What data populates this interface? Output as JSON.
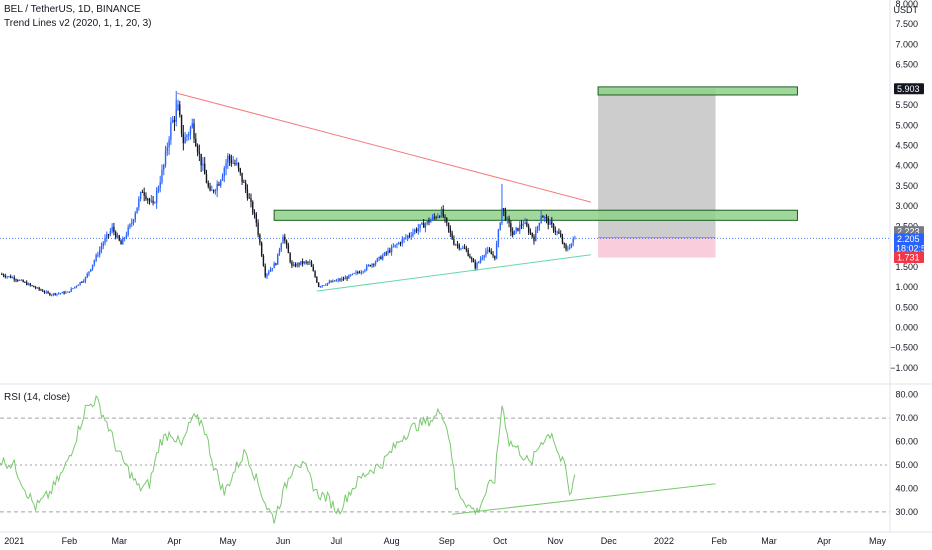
{
  "header": {
    "symbol_line": "BEL / TetherUS, 1D, BINANCE",
    "indicator_line": "Trend Lines v2 (2020, 1, 1, 20, 3)",
    "rsi_line": "RSI (14, close)"
  },
  "price_axis": {
    "currency": "USDT",
    "ticks": [
      {
        "v": 8.0,
        "label": "8.000"
      },
      {
        "v": 7.5,
        "label": "7.500"
      },
      {
        "v": 7.0,
        "label": "7.000"
      },
      {
        "v": 6.5,
        "label": "6.500"
      },
      {
        "v": 5.5,
        "label": "5.500"
      },
      {
        "v": 5.0,
        "label": "5.000"
      },
      {
        "v": 4.5,
        "label": "4.500"
      },
      {
        "v": 4.0,
        "label": "4.000"
      },
      {
        "v": 3.5,
        "label": "3.500"
      },
      {
        "v": 3.0,
        "label": "3.000"
      },
      {
        "v": 2.5,
        "label": "2.500"
      },
      {
        "v": 1.5,
        "label": "1.500"
      },
      {
        "v": 1.0,
        "label": "1.000"
      },
      {
        "v": 0.5,
        "label": "0.500"
      },
      {
        "v": 0.0,
        "label": "0.000"
      },
      {
        "v": -0.5,
        "label": "−0.500"
      },
      {
        "v": -1.0,
        "label": "−1.000"
      }
    ],
    "tags": [
      {
        "v": 5.903,
        "label": "5.903",
        "bg": "#131722",
        "fg": "#ffffff"
      },
      {
        "v": 2.223,
        "label": "2.223",
        "bg": "#787b86",
        "fg": "#ffffff"
      },
      {
        "v": 2.205,
        "label": "2.205",
        "bg": "#2962ff",
        "fg": "#ffffff",
        "sub": "18:02:52"
      },
      {
        "v": 1.731,
        "label": "1.731",
        "bg": "#f23645",
        "fg": "#ffffff"
      }
    ]
  },
  "rsi_axis": {
    "ticks": [
      {
        "v": 80,
        "label": "80.00"
      },
      {
        "v": 70,
        "label": "70.00"
      },
      {
        "v": 60,
        "label": "60.00"
      },
      {
        "v": 50,
        "label": "50.00"
      },
      {
        "v": 40,
        "label": "40.00"
      },
      {
        "v": 30,
        "label": "30.00"
      }
    ]
  },
  "time_axis": {
    "labels": [
      {
        "t": 0,
        "label": "2021"
      },
      {
        "t": 31,
        "label": "Feb"
      },
      {
        "t": 59,
        "label": "Mar"
      },
      {
        "t": 90,
        "label": "Apr"
      },
      {
        "t": 120,
        "label": "May"
      },
      {
        "t": 151,
        "label": "Jun"
      },
      {
        "t": 181,
        "label": "Jul"
      },
      {
        "t": 212,
        "label": "Aug"
      },
      {
        "t": 243,
        "label": "Sep"
      },
      {
        "t": 273,
        "label": "Oct"
      },
      {
        "t": 304,
        "label": "Nov"
      },
      {
        "t": 334,
        "label": "Dec"
      },
      {
        "t": 365,
        "label": "2022"
      },
      {
        "t": 396,
        "label": "Feb"
      },
      {
        "t": 424,
        "label": "Mar"
      },
      {
        "t": 455,
        "label": "Apr"
      },
      {
        "t": 485,
        "label": "May"
      }
    ]
  },
  "colors": {
    "up": "#2962ff",
    "down": "#131722",
    "rsi_line": "#7bc96f",
    "resistance_trend": "#f57c7c",
    "support_trend": "#66d9a8",
    "zone_fill": "#8fd18a",
    "zone_border": "#1b5e20",
    "target_fill": "#c8c8c8",
    "stop_fill": "#f8c8d8",
    "last_price_line": "#2962ff",
    "grid_dash": "#787b86",
    "separator": "#e0e3eb"
  },
  "chart_data": [
    {
      "type": "candlestick",
      "title": "BEL / TetherUS, 1D, BINANCE",
      "ylabel": "USDT",
      "xlim_days_from_2021_01_01": [
        -8,
        492
      ],
      "ylim": [
        -1.2,
        8.0
      ],
      "price_path_keypoints": [
        {
          "t": -8,
          "p": 1.32
        },
        {
          "t": 0,
          "p": 1.22
        },
        {
          "t": 10,
          "p": 1.02
        },
        {
          "t": 20,
          "p": 0.82
        },
        {
          "t": 30,
          "p": 0.87
        },
        {
          "t": 40,
          "p": 1.22
        },
        {
          "t": 50,
          "p": 2.1
        },
        {
          "t": 55,
          "p": 2.45
        },
        {
          "t": 60,
          "p": 2.05
        },
        {
          "t": 66,
          "p": 2.6
        },
        {
          "t": 72,
          "p": 3.4
        },
        {
          "t": 78,
          "p": 3.0
        },
        {
          "t": 84,
          "p": 4.0
        },
        {
          "t": 88,
          "p": 5.0
        },
        {
          "t": 92,
          "p": 5.4
        },
        {
          "t": 95,
          "p": 4.6
        },
        {
          "t": 100,
          "p": 5.0
        },
        {
          "t": 104,
          "p": 4.25
        },
        {
          "t": 110,
          "p": 3.3
        },
        {
          "t": 115,
          "p": 3.6
        },
        {
          "t": 120,
          "p": 4.2
        },
        {
          "t": 125,
          "p": 4.0
        },
        {
          "t": 131,
          "p": 3.3
        },
        {
          "t": 136,
          "p": 2.6
        },
        {
          "t": 141,
          "p": 1.3
        },
        {
          "t": 147,
          "p": 1.6
        },
        {
          "t": 151,
          "p": 2.3
        },
        {
          "t": 156,
          "p": 1.5
        },
        {
          "t": 161,
          "p": 1.6
        },
        {
          "t": 166,
          "p": 1.6
        },
        {
          "t": 171,
          "p": 1.02
        },
        {
          "t": 176,
          "p": 1.1
        },
        {
          "t": 185,
          "p": 1.2
        },
        {
          "t": 195,
          "p": 1.4
        },
        {
          "t": 205,
          "p": 1.7
        },
        {
          "t": 215,
          "p": 2.05
        },
        {
          "t": 225,
          "p": 2.4
        },
        {
          "t": 232,
          "p": 2.6
        },
        {
          "t": 240,
          "p": 2.85
        },
        {
          "t": 247,
          "p": 2.1
        },
        {
          "t": 254,
          "p": 1.9
        },
        {
          "t": 259,
          "p": 1.5
        },
        {
          "t": 265,
          "p": 1.9
        },
        {
          "t": 270,
          "p": 1.75
        },
        {
          "t": 274,
          "p": 2.95
        },
        {
          "t": 280,
          "p": 2.3
        },
        {
          "t": 286,
          "p": 2.6
        },
        {
          "t": 292,
          "p": 2.2
        },
        {
          "t": 296,
          "p": 2.8
        },
        {
          "t": 302,
          "p": 2.5
        },
        {
          "t": 306,
          "p": 2.3
        },
        {
          "t": 310,
          "p": 1.9
        },
        {
          "t": 315,
          "p": 2.205
        }
      ],
      "resistance_trendline": {
        "t": [
          91,
          324
        ],
        "p": [
          5.8,
          3.1
        ]
      },
      "support_trendline": {
        "t": [
          170,
          324
        ],
        "p": [
          0.9,
          1.8
        ]
      },
      "resistance_zone": {
        "t": [
          146,
          440
        ],
        "p": [
          2.65,
          2.9
        ]
      },
      "target_zone": {
        "t": [
          328,
          440
        ],
        "p": [
          5.75,
          5.95
        ]
      },
      "long_position": {
        "t": [
          328,
          394
        ],
        "entry": 2.223,
        "target": 5.903,
        "stop": 1.731
      }
    },
    {
      "type": "line",
      "title": "RSI (14, close)",
      "ylim": [
        24,
        82
      ],
      "levels": [
        70,
        50,
        30
      ],
      "rsi_keypoints": [
        {
          "t": -8,
          "v": 52
        },
        {
          "t": 0,
          "v": 50
        },
        {
          "t": 6,
          "v": 40
        },
        {
          "t": 12,
          "v": 32
        },
        {
          "t": 20,
          "v": 38
        },
        {
          "t": 28,
          "v": 48
        },
        {
          "t": 34,
          "v": 60
        },
        {
          "t": 40,
          "v": 74
        },
        {
          "t": 46,
          "v": 78
        },
        {
          "t": 52,
          "v": 68
        },
        {
          "t": 58,
          "v": 56
        },
        {
          "t": 64,
          "v": 48
        },
        {
          "t": 70,
          "v": 40
        },
        {
          "t": 76,
          "v": 42
        },
        {
          "t": 82,
          "v": 60
        },
        {
          "t": 88,
          "v": 64
        },
        {
          "t": 94,
          "v": 58
        },
        {
          "t": 100,
          "v": 70
        },
        {
          "t": 106,
          "v": 68
        },
        {
          "t": 112,
          "v": 50
        },
        {
          "t": 118,
          "v": 38
        },
        {
          "t": 124,
          "v": 48
        },
        {
          "t": 130,
          "v": 56
        },
        {
          "t": 136,
          "v": 44
        },
        {
          "t": 142,
          "v": 32
        },
        {
          "t": 146,
          "v": 27
        },
        {
          "t": 152,
          "v": 40
        },
        {
          "t": 158,
          "v": 52
        },
        {
          "t": 164,
          "v": 48
        },
        {
          "t": 170,
          "v": 38
        },
        {
          "t": 176,
          "v": 36
        },
        {
          "t": 182,
          "v": 30
        },
        {
          "t": 188,
          "v": 38
        },
        {
          "t": 194,
          "v": 44
        },
        {
          "t": 200,
          "v": 48
        },
        {
          "t": 206,
          "v": 50
        },
        {
          "t": 212,
          "v": 56
        },
        {
          "t": 218,
          "v": 62
        },
        {
          "t": 224,
          "v": 66
        },
        {
          "t": 230,
          "v": 68
        },
        {
          "t": 236,
          "v": 70
        },
        {
          "t": 240,
          "v": 74
        },
        {
          "t": 245,
          "v": 60
        },
        {
          "t": 248,
          "v": 40
        },
        {
          "t": 252,
          "v": 36
        },
        {
          "t": 256,
          "v": 32
        },
        {
          "t": 260,
          "v": 30
        },
        {
          "t": 266,
          "v": 40
        },
        {
          "t": 270,
          "v": 44
        },
        {
          "t": 274,
          "v": 76
        },
        {
          "t": 278,
          "v": 60
        },
        {
          "t": 284,
          "v": 56
        },
        {
          "t": 290,
          "v": 50
        },
        {
          "t": 296,
          "v": 60
        },
        {
          "t": 302,
          "v": 64
        },
        {
          "t": 306,
          "v": 54
        },
        {
          "t": 310,
          "v": 48
        },
        {
          "t": 312,
          "v": 36
        },
        {
          "t": 315,
          "v": 46
        }
      ],
      "rsi_trendline": {
        "t": [
          246,
          394
        ],
        "v": [
          29,
          42
        ]
      }
    }
  ]
}
